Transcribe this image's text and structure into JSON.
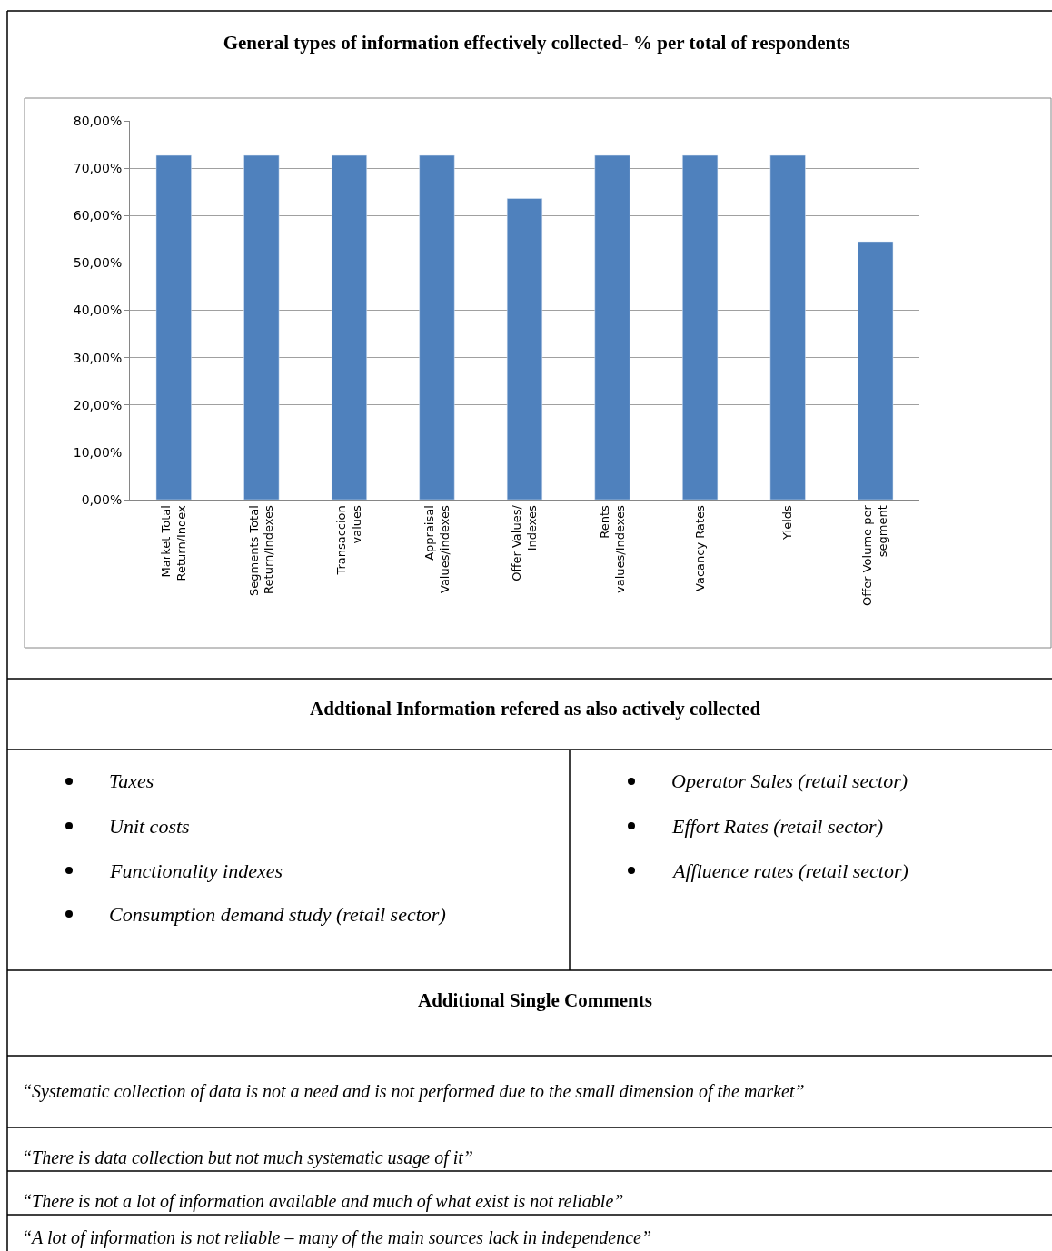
{
  "chart_data": {
    "type": "bar",
    "title": "General types of information effectively collected- % per total of respondents",
    "categories": [
      "Market Total\nReturn/Index",
      "Segments Total\nReturn/Indexes",
      "Transaccion\nvalues",
      "Appraisal\nValues/indexes",
      "Offer Values/\nIndexes",
      "Rents\nvalues/Indexes",
      "Vacancy Rates",
      "Yields",
      "Offer Volume per\nsegment"
    ],
    "values": [
      72.7,
      72.7,
      72.7,
      72.7,
      63.6,
      72.7,
      72.7,
      72.7,
      54.5
    ],
    "color": "#4f81bd",
    "ylim": [
      0,
      80
    ],
    "yticks": [
      {
        "value": 0,
        "label": "0,00%"
      },
      {
        "value": 10,
        "label": "10,00%"
      },
      {
        "value": 20,
        "label": "20,00%"
      },
      {
        "value": 30,
        "label": "30,00%"
      },
      {
        "value": 40,
        "label": "40,00%"
      },
      {
        "value": 50,
        "label": "50,00%"
      },
      {
        "value": 60,
        "label": "60,00%"
      },
      {
        "value": 70,
        "label": "70,00%"
      },
      {
        "value": 80,
        "label": "80,00%"
      }
    ],
    "grid": "y",
    "annotations": [
      "Addtional Information refered as also actively collected",
      "Taxes",
      "Unit costs",
      "Functionality indexes",
      "Consumption demand study (retail sector)",
      "Operator Sales (retail sector)",
      "Effort Rates (retail sector)",
      "Affluence rates (retail sector)",
      "Additional Single Comments",
      "“Systematic collection of data is not a need and is not performed due to the small dimension of the market”",
      "“There is data collection but not much systematic usage of it”",
      "“There is not a lot of information available and much of what exist is not reliable”",
      "“A lot of information is not reliable – many of the main sources lack in independence”"
    ]
  }
}
